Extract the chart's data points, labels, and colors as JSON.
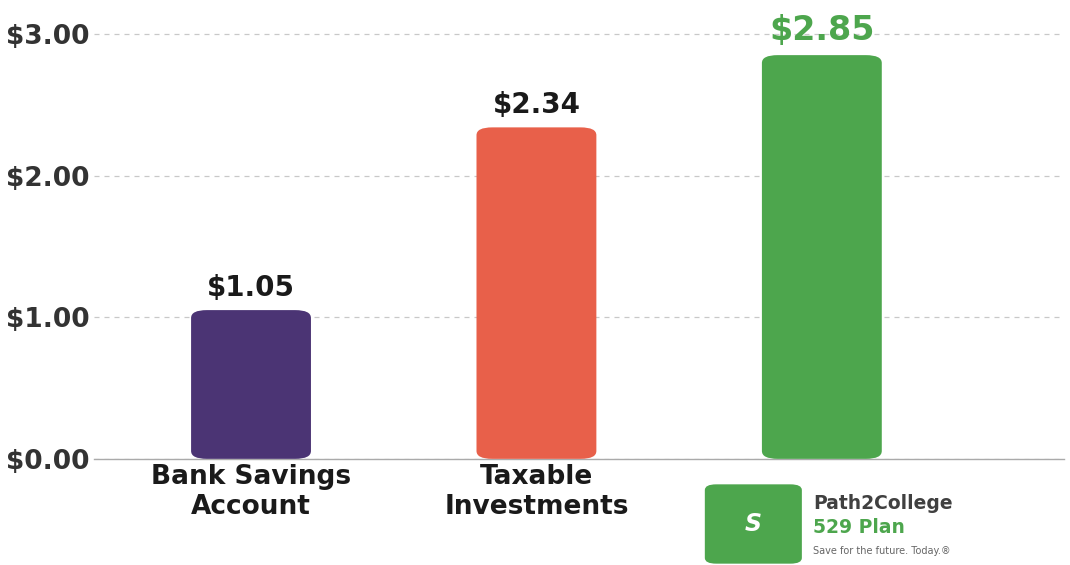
{
  "categories": [
    "Bank Savings\nAccount",
    "Taxable\nInvestments"
  ],
  "values": [
    1.05,
    2.34,
    2.85
  ],
  "bar_colors": [
    "#4B3474",
    "#E8604A",
    "#4DA64D"
  ],
  "value_labels": [
    "$1.05",
    "$2.34",
    "$2.85"
  ],
  "value_label_colors": [
    "#1a1a1a",
    "#1a1a1a",
    "#4DA64D"
  ],
  "value_label_fontsizes": [
    20,
    20,
    24
  ],
  "ytick_labels": [
    "$0.00",
    "$1.00",
    "$2.00",
    "$3.00"
  ],
  "yticks": [
    0.0,
    1.0,
    2.0,
    3.0
  ],
  "ylim": [
    0,
    3.2
  ],
  "bar_width": 0.42,
  "background_color": "#ffffff",
  "grid_color": "#c8c8c8",
  "ytick_fontsize": 19,
  "xtick_fontsize": 19,
  "logo_text1": "Path2College",
  "logo_text2": "529 Plan",
  "logo_text3": "Save for the future. Today.®",
  "logo_color_dark": "#404040",
  "logo_color_green": "#4DA64D",
  "logo_color_small": "#666666",
  "icon_color": "#4DA64D"
}
